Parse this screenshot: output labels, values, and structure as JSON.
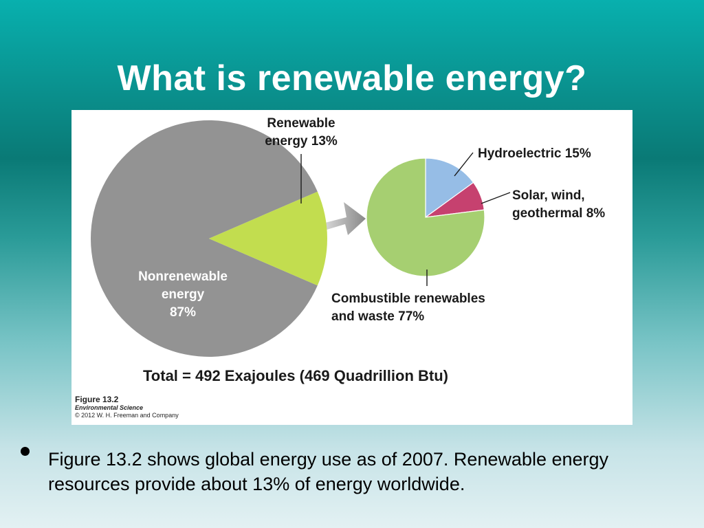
{
  "slide": {
    "title": "What is renewable energy?",
    "bullet": "Figure 13.2 shows global energy use as of 2007. Renewable energy resources provide about 13% of energy worldwide."
  },
  "figure": {
    "number": "Figure 13.2",
    "book": "Environmental Science",
    "copyright": "© 2012 W. H. Freeman and Company"
  },
  "chart_data": [
    {
      "type": "pie",
      "slices": [
        {
          "label_lines": [
            "Nonrenewable",
            "energy",
            "87%"
          ],
          "value": 87,
          "color": "#939393"
        },
        {
          "label_lines": [
            "Renewable",
            "energy 13%"
          ],
          "value": 13,
          "color": "#c2dd4f"
        }
      ],
      "total_label": "Total = 492 Exajoules (469 Quadrillion Btu)"
    },
    {
      "type": "pie",
      "slices": [
        {
          "label_lines": [
            "Hydroelectric 15%"
          ],
          "value": 15,
          "color": "#96bde6"
        },
        {
          "label_lines": [
            "Solar, wind,",
            "geothermal 8%"
          ],
          "value": 8,
          "color": "#c6416f"
        },
        {
          "label_lines": [
            "Combustible renewables",
            "and waste 77%"
          ],
          "value": 77,
          "color": "#a6cf71"
        }
      ]
    }
  ]
}
